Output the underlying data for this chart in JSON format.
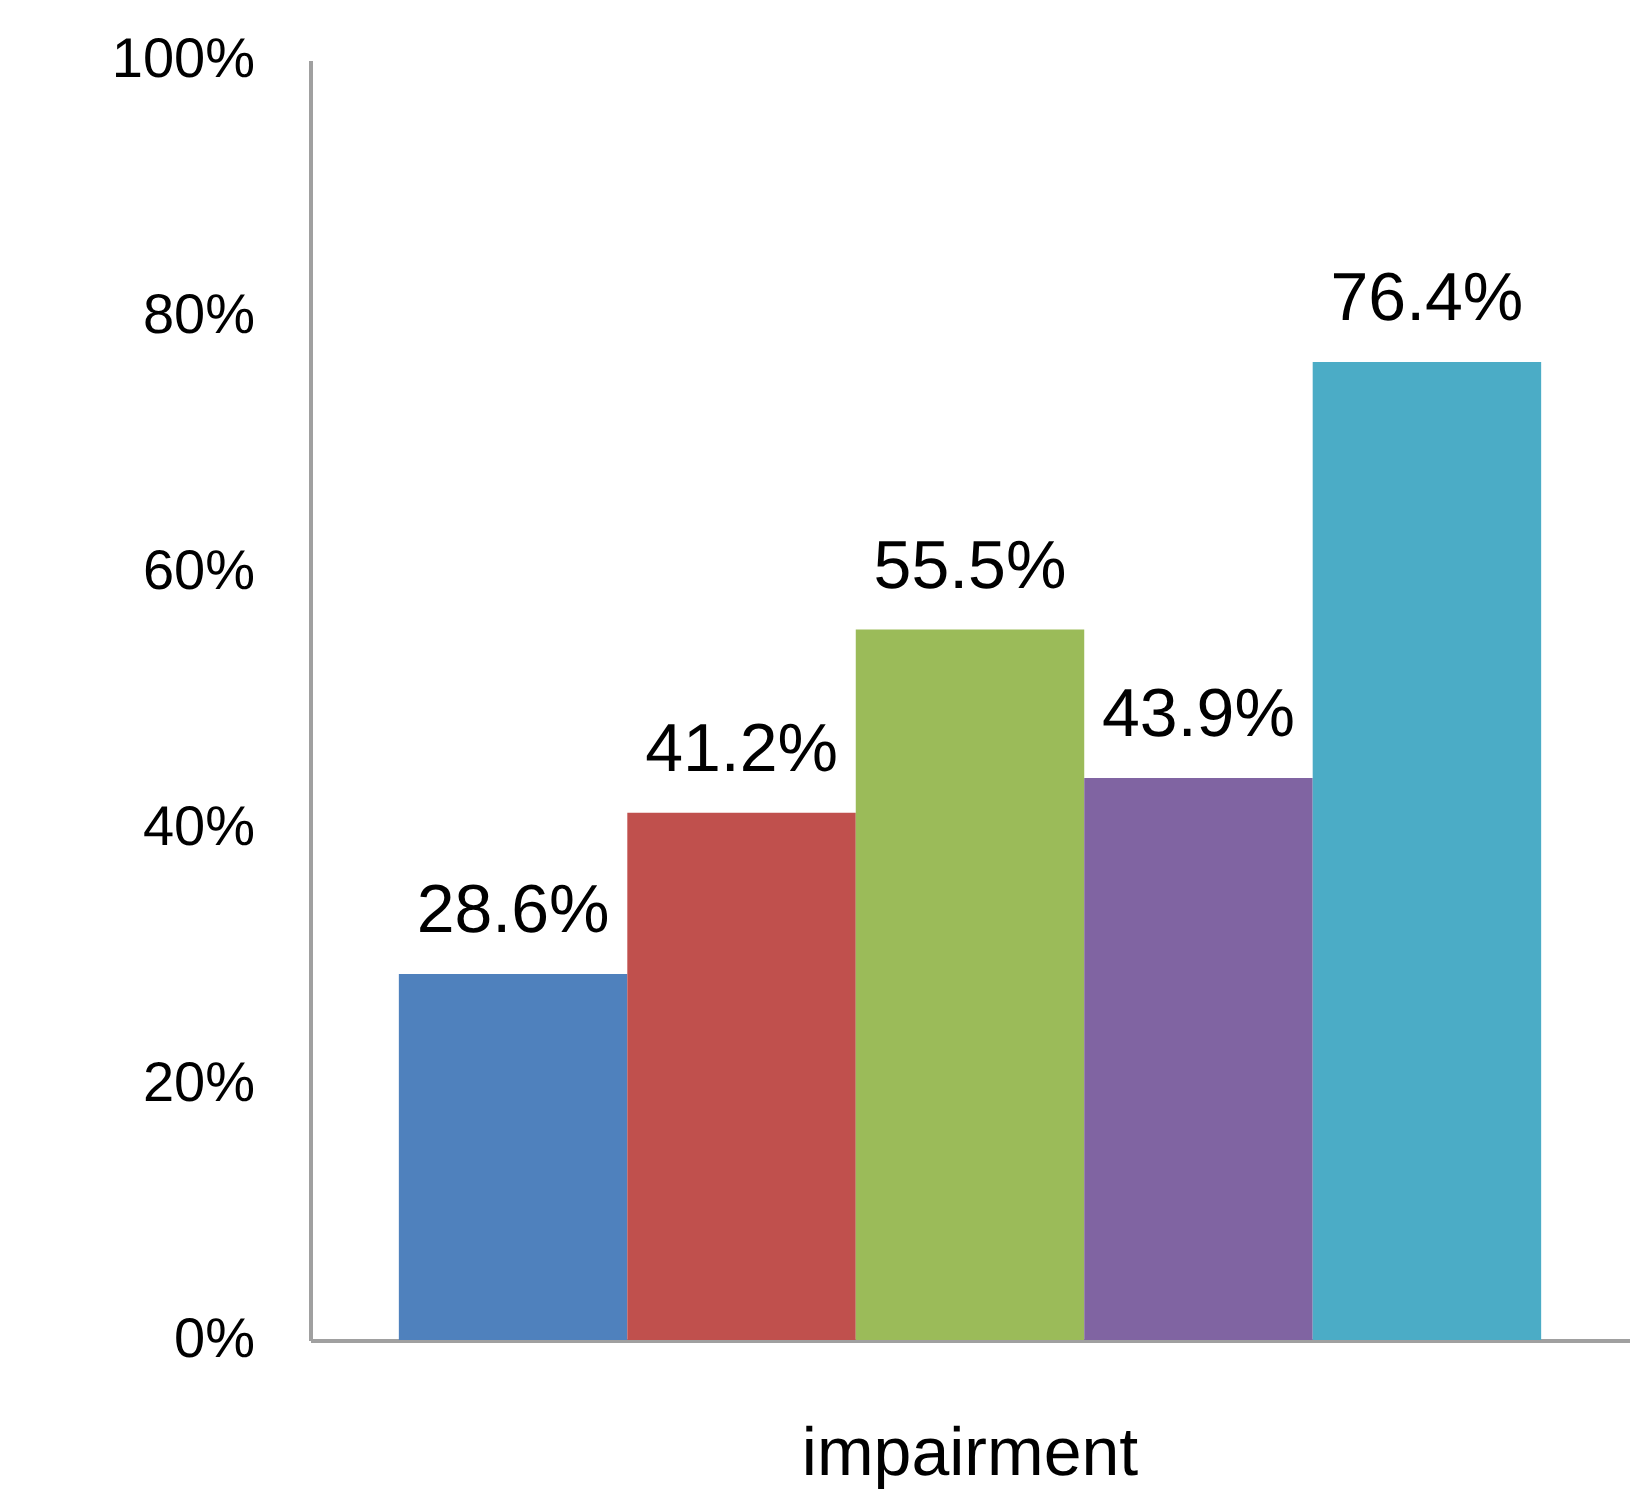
{
  "chart_data": {
    "type": "bar",
    "categories": [
      "impairment"
    ],
    "series": [
      {
        "color": "#4f81bd",
        "values": [
          28.6
        ],
        "value_labels": [
          "28.6%"
        ]
      },
      {
        "color": "#c0504d",
        "values": [
          41.2
        ],
        "value_labels": [
          "41.2%"
        ]
      },
      {
        "color": "#9bbb59",
        "values": [
          55.5
        ],
        "value_labels": [
          "55.5%"
        ]
      },
      {
        "color": "#8064a2",
        "values": [
          43.9
        ],
        "value_labels": [
          "43.9%"
        ]
      },
      {
        "color": "#4bacc6",
        "values": [
          76.4
        ],
        "value_labels": [
          "76.4%"
        ]
      }
    ],
    "ylim": [
      0,
      100
    ],
    "yticks": [
      {
        "value": 0,
        "label": "0%"
      },
      {
        "value": 20,
        "label": "20%"
      },
      {
        "value": 40,
        "label": "40%"
      },
      {
        "value": 60,
        "label": "60%"
      },
      {
        "value": 80,
        "label": "80%"
      },
      {
        "value": 100,
        "label": "100%"
      }
    ],
    "grid": false,
    "legend": false
  }
}
